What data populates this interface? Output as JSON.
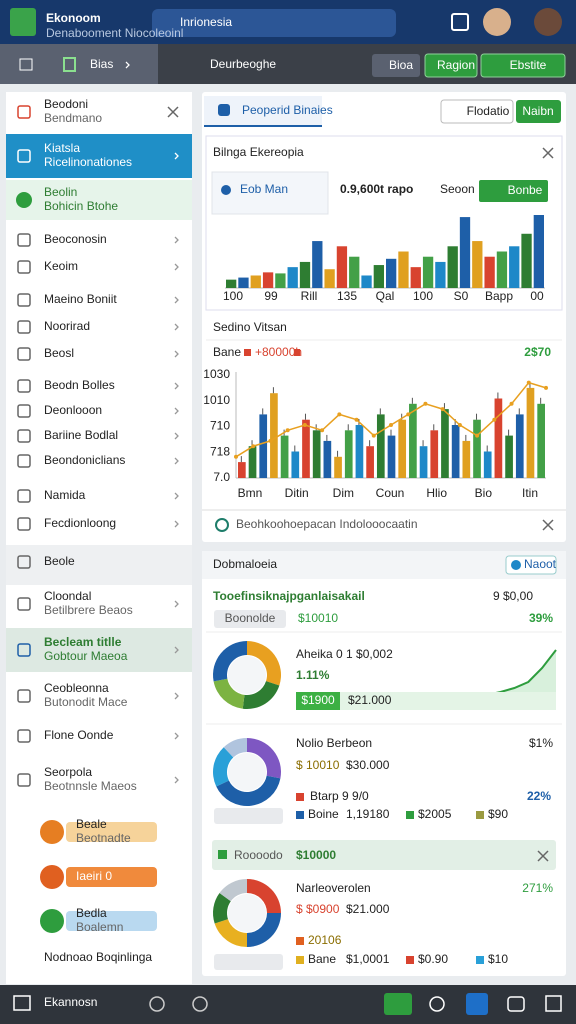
{
  "header": {
    "logo_title": "Ekonoom",
    "logo_subtitle": "Denabooment Niocoleoinl",
    "search": "Inrionesia"
  },
  "toolbar": {
    "breadcrumb": "Bias",
    "page_title": "Deurbeoghe",
    "buttons": [
      "Bioa",
      "Ragion",
      "Ebstite"
    ]
  },
  "sidebar": {
    "items": [
      {
        "label": "Beodoni",
        "sub": "Bendmano"
      },
      {
        "label": "Kiatsla",
        "sub": "Ricelinonationes"
      },
      {
        "label": "Beolin",
        "sub": "Bohicin Btohe"
      },
      {
        "label": "Beoconosin"
      },
      {
        "label": "Keoim"
      },
      {
        "label": "Maeino Boniit"
      },
      {
        "label": "Noorirad"
      },
      {
        "label": "Beosl"
      },
      {
        "label": "Beodn Bolles"
      },
      {
        "label": "Deonlooon"
      },
      {
        "label": "Bariine Bodlal"
      },
      {
        "label": "Beondoniclians"
      },
      {
        "label": "Namida"
      },
      {
        "label": "Fecdionloong"
      },
      {
        "label": "Beole"
      },
      {
        "label": "Cloondal",
        "sub": "Betilbrere Beaos"
      },
      {
        "label": "Becleam titlle",
        "sub": "Gobtour Maeoa"
      },
      {
        "label": "Ceobleonna",
        "sub": "Butonodit Mace"
      },
      {
        "label": "Flone Oonde"
      },
      {
        "label": "Seorpola",
        "sub": "Beotnnsle Maeos"
      },
      {
        "label": "Beale",
        "sub": "Beotnadte"
      },
      {
        "label": "Iaeiri 0"
      },
      {
        "label": "Bedla",
        "sub": "Boalemn"
      },
      {
        "label": "Nodnoao Boqinlinga"
      }
    ]
  },
  "dashboard": {
    "tab": "Peoperid Binaies",
    "buttons": [
      "Flodatio",
      "Naibn"
    ],
    "chart1": {
      "title": "Bilnga Ekereopia",
      "legend": "Eob Man",
      "value": "0.9,600t rapo",
      "note": "Seoon",
      "button": "Bonbe",
      "x_labels": [
        "100",
        "99",
        "Rill",
        "135",
        "Qal",
        "100",
        "S0",
        "Bapp",
        "00"
      ],
      "values": [
        8,
        10,
        12,
        15,
        14,
        20,
        25,
        45,
        18,
        40,
        30,
        12,
        22,
        28,
        35,
        20,
        30,
        25,
        40,
        68,
        45,
        30,
        35,
        40,
        52,
        70
      ],
      "colors": [
        "#2e7d32",
        "#1e5fa8",
        "#e0a020",
        "#d8432f",
        "#43a047",
        "#1e88c8"
      ]
    },
    "chart2": {
      "title": "Sedino Vitsan",
      "legend": "Bane",
      "legend2": "+80000h",
      "total": "2$70",
      "y_labels": [
        "1030",
        "1010",
        "710",
        "718",
        "7.0"
      ],
      "x_labels": [
        "Bmn",
        "Ditin",
        "Dim",
        "Coun",
        "Hlio",
        "Bio",
        "Itin"
      ],
      "values": [
        15,
        30,
        60,
        80,
        40,
        25,
        55,
        45,
        35,
        20,
        45,
        50,
        30,
        60,
        40,
        55,
        70,
        30,
        45,
        65,
        50,
        35,
        55,
        25,
        75,
        40,
        60,
        85,
        70
      ],
      "colors": [
        "#d8432f",
        "#2e7d32",
        "#1e5fa8",
        "#e0a020",
        "#43a047",
        "#1e88c8"
      ],
      "trend": [
        20,
        30,
        35,
        45,
        50,
        45,
        60,
        55,
        40,
        50,
        60,
        70,
        65,
        50,
        40,
        55,
        70,
        90,
        85
      ]
    },
    "footer": "Beohkoohoepacan Indolooocaatin"
  },
  "summary": {
    "title": "Dobmaloeia",
    "badge": "Naoot",
    "heading": "Tooefinsiknajpganlaisakail",
    "heading_right": "9 $0,00",
    "heading_pct": "39%",
    "filter": "Boonolde",
    "filter_value": "$10010",
    "sections": [
      {
        "title": "Aheika 0 1 $0,002",
        "change": "1.11%",
        "bar_left": "$1900",
        "bar_right": "$21.000",
        "donut": [
          30,
          22,
          20,
          28
        ],
        "colors": [
          "#e8a020",
          "#2e7d32",
          "#7cb342",
          "#1e5fa8"
        ],
        "trend": [
          8,
          10,
          12,
          13,
          16,
          20,
          26,
          40,
          58
        ]
      },
      {
        "title": "Nolio Berbeon",
        "right": "$1%",
        "line1a": "$ 10010",
        "line1b": "$30.000",
        "line2": "Btarp 9 9/0",
        "pct": "22%",
        "row": [
          "Boine",
          "1,19180",
          "$2005",
          "$90"
        ],
        "donut": [
          28,
          40,
          20,
          12
        ],
        "colors": [
          "#7e57c2",
          "#1e5fa8",
          "#29a0d8",
          "#b0c4de"
        ]
      },
      {
        "title": "Narleoverolen",
        "right": "271%",
        "line1a": "$ $0900",
        "line1b": "$21.000",
        "line2": "20106",
        "row": [
          "Bane",
          "$1,0001",
          "$0.90",
          "$10"
        ],
        "donut": [
          25,
          25,
          20,
          15,
          15
        ],
        "colors": [
          "#d8432f",
          "#1e5fa8",
          "#e8b020",
          "#2e7d32",
          "#c0c8d0"
        ]
      }
    ],
    "banner": "Roooodo",
    "banner_value": "$10000"
  },
  "bottom_nav": {
    "title": "Ekannosn"
  }
}
